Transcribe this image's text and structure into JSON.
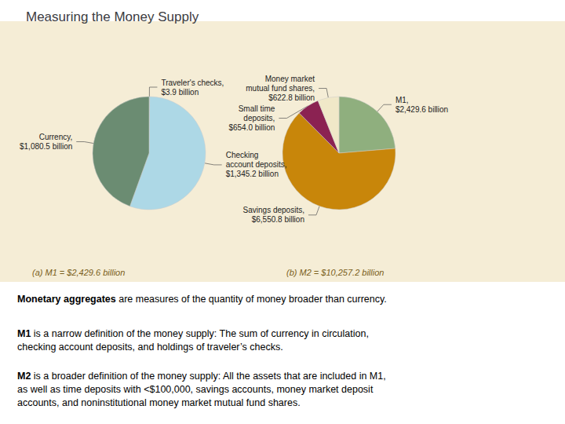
{
  "title": "Measuring the Money Supply",
  "chart_data": [
    {
      "type": "pie",
      "title": "(a) M1 = $2,429.6 billion",
      "categories": [
        "Traveler's checks,",
        "Checking\naccount deposits,",
        "Currency,"
      ],
      "values": [
        3.9,
        1345.2,
        1080.5
      ],
      "value_labels": [
        "$3.9 billion",
        "$1,345.2 billion",
        "$1,080.5 billion"
      ],
      "colors": [
        "#6E9178",
        "#ADD8E6",
        "#6B8C72"
      ],
      "data_labels": true
    },
    {
      "type": "pie",
      "title": "(b) M2 = $10,257.2 billion",
      "categories": [
        "M1,",
        "Savings deposits,",
        "Small time\ndeposits,",
        "Money market\nmutual fund shares,"
      ],
      "values": [
        2429.6,
        6550.8,
        654.0,
        622.8
      ],
      "value_labels": [
        "$2,429.6 billion",
        "$6,550.8 billion",
        "$654.0 billion",
        "$622.8 billion"
      ],
      "colors": [
        "#8FAF7E",
        "#C8860A",
        "#8B2252",
        "#F0E8C8"
      ],
      "data_labels": true
    }
  ],
  "annotations": [
    [
      "Monetary aggregates",
      " are measures of the quantity of money broader than currency."
    ],
    [
      "M1",
      " is a narrow definition of the money supply: The sum of currency in circulation,\nchecking account deposits, and holdings of traveler’s checks."
    ],
    [
      "M2",
      " is a broader definition of the money supply: All the assets that are included in M1,\nas well as time deposits with <$100,000, savings accounts, money market deposit\naccounts, and noninstitutional money market mutual fund shares."
    ]
  ]
}
